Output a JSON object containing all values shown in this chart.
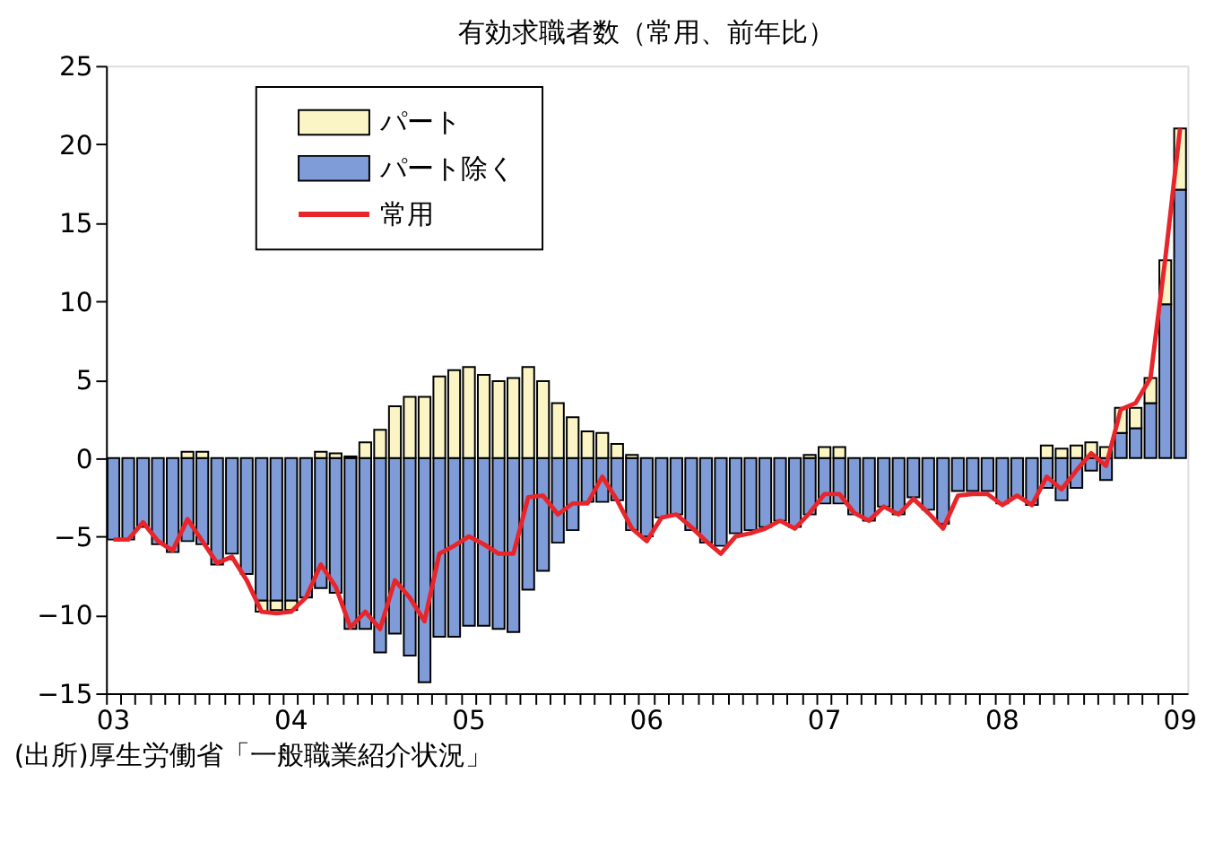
{
  "chart_data": {
    "type": "bar",
    "title": "有効求職者数（常用、前年比）",
    "stacked": true,
    "categories": [
      "03",
      null,
      null,
      null,
      null,
      null,
      null,
      null,
      null,
      null,
      null,
      null,
      "04",
      null,
      null,
      null,
      null,
      null,
      null,
      null,
      null,
      null,
      null,
      null,
      "05",
      null,
      null,
      null,
      null,
      null,
      null,
      null,
      null,
      null,
      null,
      null,
      "06",
      null,
      null,
      null,
      null,
      null,
      null,
      null,
      null,
      null,
      null,
      null,
      "07",
      null,
      null,
      null,
      null,
      null,
      null,
      null,
      null,
      null,
      null,
      null,
      "08",
      null,
      null,
      null,
      null,
      null,
      null,
      null,
      null,
      null,
      null,
      null,
      "09"
    ],
    "series": [
      {
        "name": "パート除く",
        "color": "#7f9cd8",
        "values": [
          -5.2,
          -5.2,
          -4.4,
          -5.5,
          -6.0,
          -5.3,
          -5.5,
          -6.8,
          -6.1,
          -7.4,
          -9.1,
          -9.1,
          -9.1,
          -8.9,
          -8.3,
          -8.6,
          -10.9,
          -10.9,
          -12.4,
          -11.2,
          -12.6,
          -14.3,
          -11.4,
          -11.4,
          -10.7,
          -10.7,
          -10.9,
          -11.1,
          -8.4,
          -7.2,
          -5.4,
          -4.6,
          -2.8,
          -2.8,
          -2.7,
          -4.6,
          -5.0,
          -3.8,
          -3.6,
          -4.6,
          -5.4,
          -5.6,
          -4.8,
          -4.6,
          -4.4,
          -4.0,
          -4.4,
          -3.6,
          -2.9,
          -2.9,
          -3.6,
          -4.0,
          -3.1,
          -3.6,
          -2.5,
          -3.3,
          -4.2,
          -2.1,
          -2.1,
          -2.1,
          -2.9,
          -2.5,
          -3.0,
          -1.9,
          -2.7,
          -1.9,
          -0.8,
          -1.4,
          1.6,
          1.9,
          3.5,
          9.8,
          17.1
        ]
      },
      {
        "name": "パート",
        "color": "#fbf5c6",
        "values": [
          null,
          null,
          null,
          null,
          null,
          0.4,
          0.4,
          null,
          null,
          null,
          -0.7,
          -0.6,
          -0.6,
          null,
          0.4,
          0.3,
          0.1,
          1.0,
          1.8,
          3.3,
          3.9,
          3.9,
          5.2,
          5.6,
          5.8,
          5.3,
          4.9,
          5.1,
          5.8,
          4.9,
          3.5,
          2.6,
          1.7,
          1.6,
          0.9,
          0.2,
          null,
          null,
          null,
          null,
          null,
          null,
          null,
          null,
          null,
          null,
          null,
          0.2,
          0.7,
          0.7,
          null,
          null,
          null,
          null,
          null,
          null,
          null,
          null,
          null,
          null,
          null,
          null,
          null,
          0.8,
          0.6,
          0.8,
          1.0,
          0.7,
          1.6,
          1.3,
          1.6,
          2.8,
          3.9
        ]
      },
      {
        "name": "常用",
        "type": "line",
        "color": "#e8252a",
        "values": [
          -5.2,
          -5.2,
          -4.1,
          -5.3,
          -5.9,
          -3.9,
          -5.3,
          -6.7,
          -6.3,
          -7.8,
          -9.8,
          -9.9,
          -9.8,
          -8.9,
          -6.8,
          -8.2,
          -10.8,
          -9.8,
          -10.9,
          -7.8,
          -8.9,
          -10.4,
          -6.1,
          -5.6,
          -5.0,
          -5.5,
          -6.1,
          -6.1,
          -2.5,
          -2.4,
          -3.6,
          -2.9,
          -2.9,
          -1.2,
          -2.7,
          -4.5,
          -5.3,
          -3.8,
          -3.6,
          -4.4,
          -5.3,
          -6.1,
          -5.0,
          -4.8,
          -4.5,
          -4.0,
          -4.5,
          -3.5,
          -2.3,
          -2.3,
          -3.5,
          -4.0,
          -3.1,
          -3.6,
          -2.6,
          -3.5,
          -4.5,
          -2.4,
          -2.3,
          -2.3,
          -3.0,
          -2.4,
          -3.0,
          -1.2,
          -2.0,
          -0.8,
          0.3,
          -0.5,
          3.1,
          3.5,
          5.1,
          12.7,
          21.0
        ]
      }
    ],
    "ylim": [
      -15,
      25
    ],
    "yticks": [
      -15,
      -10,
      -5,
      0,
      5,
      10,
      15,
      20,
      25
    ],
    "grid": false,
    "legend": "top",
    "annotations": [
      "(出所)厚生労働省「一般職業紹介状況」"
    ]
  }
}
